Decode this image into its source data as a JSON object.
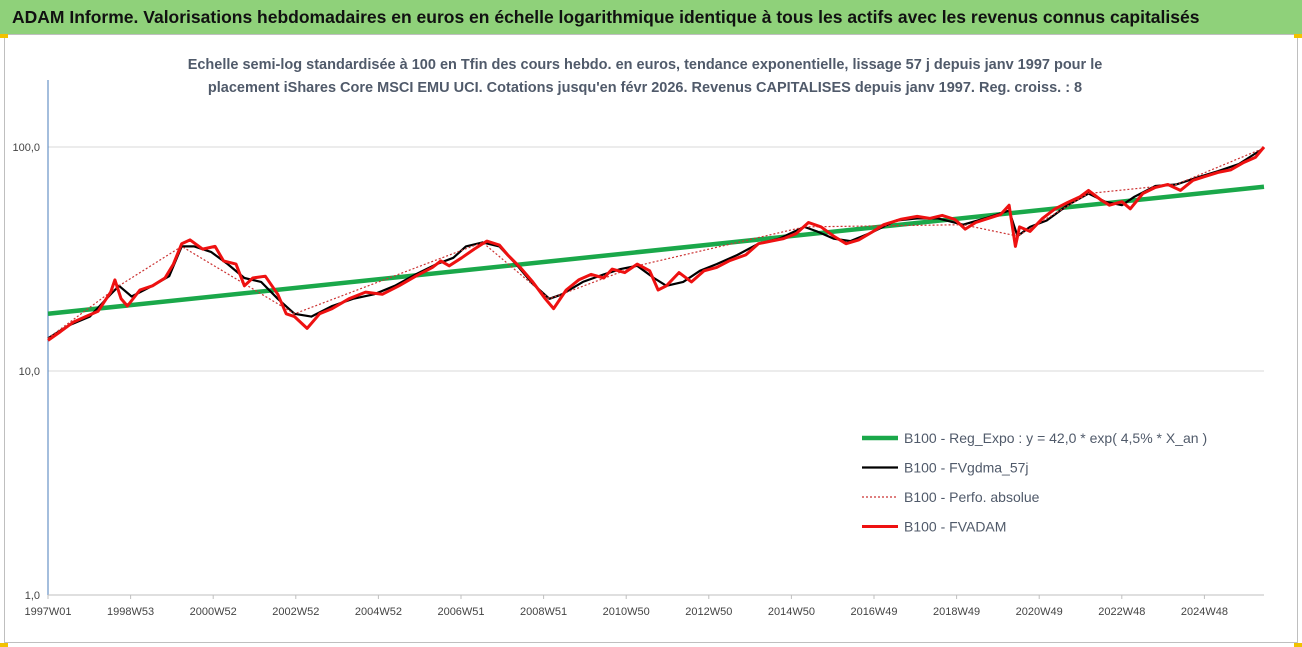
{
  "banner": {
    "title": "ADAM Informe. Valorisations hebdomadaires en euros en échelle logarithmique identique à tous les actifs avec les revenus connus capitalisés"
  },
  "colors": {
    "banner_bg": "#8fd17a",
    "corner": "#f2c200"
  },
  "chart_data": {
    "type": "line",
    "title_line1": "Echelle semi-log standardisée à 100 en Tfin des cours hebdo. en euros, tendance exponentielle, lissage 57 j depuis janv 1997 pour le",
    "title_line2": "placement iShares Core MSCI EMU UCI. Cotations jusqu'en févr 2026. Revenus CAPITALISES depuis janv 1997. Reg. croiss. : 8",
    "y_scale": "log",
    "ylim": [
      1,
      100
    ],
    "y_ticks": [
      "1,0",
      "10,0",
      "100,0"
    ],
    "x_ticks": [
      "1997W01",
      "1998W53",
      "2000W52",
      "2002W52",
      "2004W52",
      "2006W51",
      "2008W51",
      "2010W50",
      "2012W50",
      "2014W50",
      "2016W49",
      "2018W49",
      "2020W49",
      "2022W48",
      "2024W48"
    ],
    "xlim": [
      1997.0,
      2026.1
    ],
    "grid": "horizontal",
    "legend_position": "bottom-right",
    "series": [
      {
        "name": "B100 - Reg_Expo : y = 42,0 * exp( 4,5% *  X_an )",
        "color": "#1aa84a",
        "x": [
          1997.0,
          2026.1
        ],
        "y": [
          18.0,
          66.5
        ]
      },
      {
        "name": "B100 - FVgdma_57j",
        "color": "#000000",
        "x": [
          1997.0,
          1997.5,
          1998.0,
          1998.5,
          1998.7,
          1999.0,
          1999.5,
          1999.9,
          2000.2,
          2000.5,
          2000.9,
          2001.3,
          2001.7,
          2002.1,
          2002.5,
          2002.9,
          2003.3,
          2003.8,
          2004.3,
          2004.8,
          2005.3,
          2005.8,
          2006.3,
          2006.7,
          2007.0,
          2007.4,
          2007.8,
          2008.2,
          2008.6,
          2009.0,
          2009.3,
          2009.8,
          2010.3,
          2010.7,
          2011.1,
          2011.5,
          2011.8,
          2012.2,
          2012.6,
          2013.0,
          2013.5,
          2014.0,
          2014.5,
          2015.1,
          2015.4,
          2015.8,
          2016.2,
          2016.7,
          2017.3,
          2017.8,
          2018.3,
          2018.9,
          2019.5,
          2020.0,
          2020.2,
          2020.5,
          2020.9,
          2021.4,
          2021.9,
          2022.3,
          2022.7,
          2023.0,
          2023.5,
          2024.0,
          2024.5,
          2025.0,
          2025.5,
          2026.1
        ],
        "y": [
          14.0,
          16.0,
          17.5,
          22.0,
          24.0,
          21.5,
          24.0,
          26.5,
          36.0,
          36.0,
          34.0,
          30.0,
          26.0,
          25.0,
          21.0,
          18.0,
          17.5,
          19.5,
          21.0,
          22.0,
          24.0,
          27.0,
          30.0,
          32.0,
          36.0,
          37.5,
          36.0,
          30.0,
          24.5,
          21.0,
          22.0,
          25.0,
          27.0,
          28.5,
          29.5,
          26.0,
          24.0,
          25.0,
          28.0,
          30.0,
          33.0,
          37.0,
          39.0,
          44.0,
          42.0,
          39.0,
          38.0,
          41.5,
          47.0,
          48.0,
          48.0,
          45.0,
          48.5,
          52.0,
          40.0,
          44.0,
          47.0,
          55.0,
          62.0,
          57.0,
          55.0,
          60.0,
          67.0,
          68.0,
          73.0,
          78.0,
          84.0,
          99.0
        ]
      },
      {
        "name": "B100 - Perfo. absolue",
        "color": "#cc3333",
        "x": [
          1997.0,
          1998.7,
          2000.2,
          2002.9,
          2007.4,
          2009.0,
          2011.1,
          2015.1,
          2018.9,
          2020.2,
          2021.9,
          2024.0,
          2026.1
        ],
        "y": [
          14.0,
          24.0,
          36.0,
          18.0,
          37.5,
          21.0,
          29.5,
          44.0,
          45.0,
          40.0,
          62.0,
          68.0,
          99.0
        ]
      },
      {
        "name": "B100 - FVADAM",
        "color": "#ee1111",
        "x": [
          1997.0,
          1997.3,
          1997.6,
          1997.9,
          1998.2,
          1998.5,
          1998.6,
          1998.75,
          1998.9,
          1999.2,
          1999.5,
          1999.8,
          2000.0,
          2000.2,
          2000.4,
          2000.7,
          2001.0,
          2001.2,
          2001.5,
          2001.7,
          2001.9,
          2002.2,
          2002.5,
          2002.7,
          2002.9,
          2003.2,
          2003.5,
          2003.8,
          2004.2,
          2004.6,
          2005.0,
          2005.4,
          2005.8,
          2006.2,
          2006.4,
          2006.6,
          2006.9,
          2007.2,
          2007.5,
          2007.8,
          2008.0,
          2008.3,
          2008.6,
          2008.9,
          2009.1,
          2009.4,
          2009.7,
          2010.0,
          2010.3,
          2010.5,
          2010.8,
          2011.1,
          2011.4,
          2011.6,
          2011.8,
          2012.1,
          2012.4,
          2012.7,
          2013.0,
          2013.3,
          2013.7,
          2014.0,
          2014.3,
          2014.6,
          2014.9,
          2015.2,
          2015.5,
          2015.8,
          2016.1,
          2016.4,
          2016.7,
          2017.0,
          2017.4,
          2017.8,
          2018.1,
          2018.4,
          2018.7,
          2018.95,
          2019.2,
          2019.5,
          2019.8,
          2020.0,
          2020.15,
          2020.25,
          2020.5,
          2020.8,
          2021.1,
          2021.4,
          2021.7,
          2021.9,
          2022.2,
          2022.4,
          2022.7,
          2022.9,
          2023.2,
          2023.5,
          2023.8,
          2024.1,
          2024.4,
          2024.7,
          2025.0,
          2025.3,
          2025.6,
          2025.9,
          2026.1
        ],
        "y": [
          13.7,
          15.0,
          16.5,
          17.5,
          18.5,
          22.5,
          25.5,
          21.0,
          19.5,
          23.0,
          24.0,
          26.0,
          30.0,
          37.0,
          38.5,
          35.0,
          36.0,
          31.0,
          30.0,
          24.0,
          26.0,
          26.5,
          22.0,
          18.0,
          17.5,
          15.5,
          18.0,
          19.0,
          21.0,
          22.5,
          22.0,
          24.0,
          26.5,
          29.0,
          31.0,
          29.5,
          32.0,
          35.0,
          38.0,
          36.5,
          33.0,
          29.0,
          25.0,
          21.0,
          19.0,
          23.0,
          25.5,
          27.0,
          26.0,
          28.5,
          27.5,
          30.0,
          28.0,
          23.0,
          24.0,
          27.5,
          25.0,
          28.0,
          29.0,
          31.0,
          33.0,
          37.0,
          38.0,
          39.0,
          41.0,
          46.0,
          44.0,
          40.0,
          37.0,
          38.5,
          41.5,
          45.0,
          47.5,
          49.0,
          48.0,
          49.5,
          47.5,
          43.0,
          46.0,
          48.0,
          50.0,
          55.0,
          36.0,
          44.0,
          42.0,
          48.0,
          53.0,
          56.5,
          60.0,
          64.0,
          58.0,
          55.0,
          57.0,
          53.0,
          62.0,
          66.0,
          68.0,
          64.0,
          71.0,
          74.0,
          77.0,
          79.0,
          85.0,
          90.0,
          100.0
        ]
      }
    ]
  }
}
